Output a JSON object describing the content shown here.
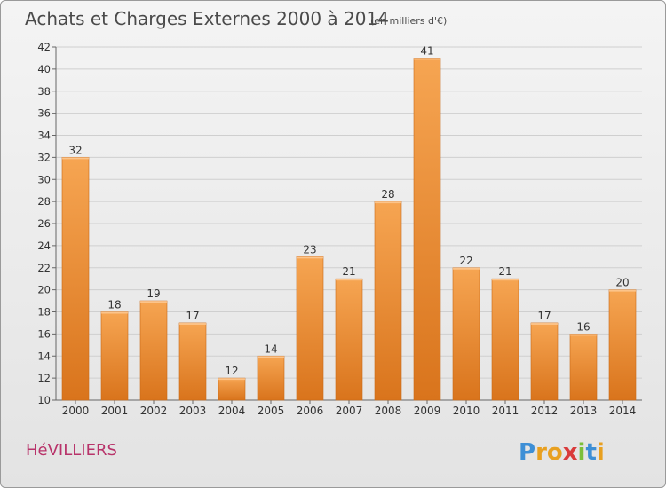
{
  "chart_data": {
    "type": "bar",
    "title": "Achats et Charges Externes 2000 à 2014",
    "subtitle": "(en milliers d'€)",
    "categories": [
      "2000",
      "2001",
      "2002",
      "2003",
      "2004",
      "2005",
      "2006",
      "2007",
      "2008",
      "2009",
      "2010",
      "2011",
      "2012",
      "2013",
      "2014"
    ],
    "values": [
      32,
      18,
      19,
      17,
      12,
      14,
      23,
      21,
      28,
      41,
      22,
      21,
      17,
      16,
      20
    ],
    "ylim": [
      10,
      42
    ],
    "yticks": [
      10,
      12,
      14,
      16,
      18,
      20,
      22,
      24,
      26,
      28,
      30,
      32,
      34,
      36,
      38,
      40,
      42
    ],
    "grid": true,
    "bar_color": "#e8852e"
  },
  "commune": "HéVILLIERS",
  "brand": {
    "letters": [
      "P",
      "r",
      "o",
      "x",
      "i",
      "t",
      "i"
    ],
    "colors": [
      "#3d8fd6",
      "#e8a020",
      "#e8a020",
      "#d93b3b",
      "#7cbf3a",
      "#3d8fd6",
      "#e8a020"
    ]
  }
}
